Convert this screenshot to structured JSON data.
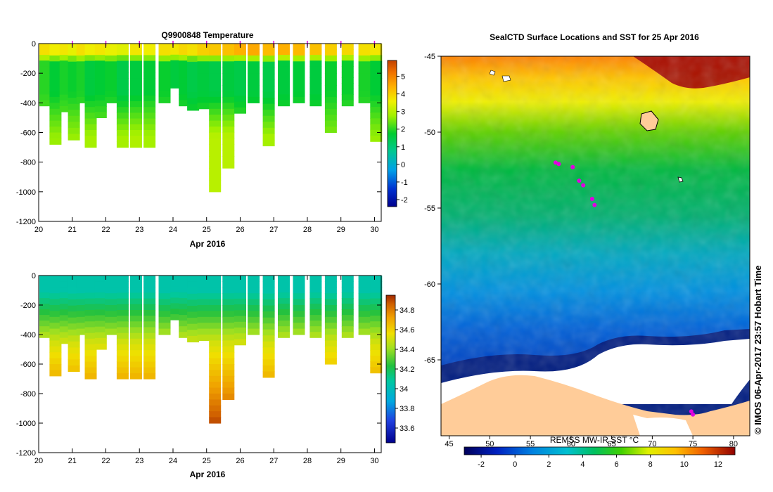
{
  "chart_data": [
    {
      "type": "heatmap",
      "title": "Q9900848  Temperature",
      "xlabel": "Apr 2016",
      "ylabel": "",
      "x_ticks": [
        "20",
        "21",
        "22",
        "23",
        "24",
        "25",
        "26",
        "27",
        "28",
        "29",
        "30"
      ],
      "xlim": [
        20,
        30.2
      ],
      "y_ticks": [
        "0",
        "-200",
        "-400",
        "-600",
        "-800",
        "-1000",
        "-1200"
      ],
      "ylim": [
        -1200,
        0
      ],
      "colorbar": {
        "min": -2.4,
        "max": 5.9,
        "ticks": [
          "-2",
          "-1",
          "0",
          "1",
          "2",
          "3",
          "4",
          "5"
        ]
      },
      "markers_x": [
        21,
        22,
        23,
        24,
        25,
        26,
        27,
        28,
        29,
        30
      ],
      "profiles": [
        {
          "x": 20.2,
          "depth": 420,
          "surface": 3.8,
          "mid": 2.0,
          "deep": 2.6
        },
        {
          "x": 20.5,
          "depth": 680,
          "surface": 3.6,
          "mid": 1.7,
          "deep": 2.7
        },
        {
          "x": 20.8,
          "depth": 460,
          "surface": 3.7,
          "mid": 1.9,
          "deep": 2.6
        },
        {
          "x": 21.05,
          "depth": 650,
          "surface": 3.5,
          "mid": 1.8,
          "deep": 2.7
        },
        {
          "x": 21.3,
          "depth": 400,
          "surface": 3.8,
          "mid": 1.9,
          "deep": 2.5
        },
        {
          "x": 21.55,
          "depth": 700,
          "surface": 3.6,
          "mid": 1.6,
          "deep": 2.8
        },
        {
          "x": 21.85,
          "depth": 500,
          "surface": 3.7,
          "mid": 1.7,
          "deep": 2.6
        },
        {
          "x": 22.15,
          "depth": 400,
          "surface": 3.5,
          "mid": 1.8,
          "deep": 2.5
        },
        {
          "x": 22.5,
          "depth": 700,
          "surface": 3.4,
          "mid": 1.5,
          "deep": 2.8
        },
        {
          "x": 22.9,
          "depth": 700,
          "surface": 3.7,
          "mid": 1.6,
          "deep": 2.9
        },
        {
          "x": 23.3,
          "depth": 700,
          "surface": 3.6,
          "mid": 1.7,
          "deep": 2.8
        },
        {
          "x": 23.75,
          "depth": 400,
          "surface": 3.8,
          "mid": 1.8,
          "deep": 2.5
        },
        {
          "x": 24.1,
          "depth": 300,
          "surface": 3.7,
          "mid": 1.6,
          "deep": 2.2
        },
        {
          "x": 24.35,
          "depth": 420,
          "surface": 3.9,
          "mid": 1.7,
          "deep": 2.4
        },
        {
          "x": 24.6,
          "depth": 450,
          "surface": 3.8,
          "mid": 1.5,
          "deep": 2.4
        },
        {
          "x": 24.9,
          "depth": 440,
          "surface": 4.0,
          "mid": 1.6,
          "deep": 2.5
        },
        {
          "x": 25.25,
          "depth": 1000,
          "surface": 4.1,
          "mid": 1.5,
          "deep": 3.0
        },
        {
          "x": 25.65,
          "depth": 840,
          "surface": 4.2,
          "mid": 1.6,
          "deep": 3.0
        },
        {
          "x": 26.0,
          "depth": 470,
          "surface": 4.4,
          "mid": 1.5,
          "deep": 2.6
        },
        {
          "x": 26.4,
          "depth": 400,
          "surface": 4.5,
          "mid": 1.6,
          "deep": 2.5
        },
        {
          "x": 26.85,
          "depth": 690,
          "surface": 4.3,
          "mid": 1.5,
          "deep": 2.8
        },
        {
          "x": 27.3,
          "depth": 420,
          "surface": 4.4,
          "mid": 1.6,
          "deep": 2.5
        },
        {
          "x": 27.75,
          "depth": 400,
          "surface": 4.3,
          "mid": 1.7,
          "deep": 2.5
        },
        {
          "x": 28.25,
          "depth": 420,
          "surface": 4.2,
          "mid": 1.6,
          "deep": 2.5
        },
        {
          "x": 28.7,
          "depth": 600,
          "surface": 4.0,
          "mid": 1.8,
          "deep": 2.6
        },
        {
          "x": 29.2,
          "depth": 420,
          "surface": 3.9,
          "mid": 1.8,
          "deep": 2.5
        },
        {
          "x": 29.7,
          "depth": 400,
          "surface": 3.8,
          "mid": 1.9,
          "deep": 2.4
        },
        {
          "x": 30.05,
          "depth": 660,
          "surface": 3.7,
          "mid": 1.7,
          "deep": 2.7
        }
      ]
    },
    {
      "type": "heatmap",
      "title": "",
      "xlabel": "Apr 2016",
      "ylabel": "",
      "x_ticks": [
        "20",
        "21",
        "22",
        "23",
        "24",
        "25",
        "26",
        "27",
        "28",
        "29",
        "30"
      ],
      "xlim": [
        20,
        30.2
      ],
      "y_ticks": [
        "0",
        "-200",
        "-400",
        "-600",
        "-800",
        "-1000",
        "-1200"
      ],
      "ylim": [
        -1200,
        0
      ],
      "colorbar": {
        "min": 33.45,
        "max": 34.95,
        "ticks": [
          "33.6",
          "33.8",
          "34",
          "34.2",
          "34.4",
          "34.6",
          "34.8"
        ]
      },
      "profiles": [
        {
          "x": 20.2,
          "depth": 420
        },
        {
          "x": 20.5,
          "depth": 680
        },
        {
          "x": 20.8,
          "depth": 460
        },
        {
          "x": 21.05,
          "depth": 650
        },
        {
          "x": 21.3,
          "depth": 400
        },
        {
          "x": 21.55,
          "depth": 700
        },
        {
          "x": 21.85,
          "depth": 500
        },
        {
          "x": 22.15,
          "depth": 400
        },
        {
          "x": 22.5,
          "depth": 700
        },
        {
          "x": 22.9,
          "depth": 700
        },
        {
          "x": 23.3,
          "depth": 700
        },
        {
          "x": 23.75,
          "depth": 400
        },
        {
          "x": 24.1,
          "depth": 300
        },
        {
          "x": 24.35,
          "depth": 420
        },
        {
          "x": 24.6,
          "depth": 450
        },
        {
          "x": 24.9,
          "depth": 440
        },
        {
          "x": 25.25,
          "depth": 1000
        },
        {
          "x": 25.65,
          "depth": 840
        },
        {
          "x": 26.0,
          "depth": 470
        },
        {
          "x": 26.4,
          "depth": 400
        },
        {
          "x": 26.85,
          "depth": 690
        },
        {
          "x": 27.3,
          "depth": 420
        },
        {
          "x": 27.75,
          "depth": 400
        },
        {
          "x": 28.25,
          "depth": 420
        },
        {
          "x": 28.7,
          "depth": 600
        },
        {
          "x": 29.2,
          "depth": 420
        },
        {
          "x": 29.7,
          "depth": 400
        },
        {
          "x": 30.05,
          "depth": 660
        }
      ]
    },
    {
      "type": "heatmap",
      "title": "SealCTD Surface Locations and SST for 25 Apr 2016",
      "x_ticks": [
        "45",
        "50",
        "55",
        "60",
        "65",
        "70",
        "75",
        "80"
      ],
      "xlim": [
        44,
        82
      ],
      "y_ticks": [
        "-45",
        "-50",
        "-55",
        "-60",
        "-65"
      ],
      "ylim": [
        -70,
        -45
      ],
      "colorbar": {
        "label": "REMSS MW-IR SST °C",
        "min": -3,
        "max": 13,
        "ticks": [
          "-2",
          "0",
          "2",
          "4",
          "6",
          "8",
          "10",
          "12"
        ]
      },
      "seal_positions": [
        {
          "lon": 58.1,
          "lat": -52.0
        },
        {
          "lon": 58.5,
          "lat": -52.1
        },
        {
          "lon": 60.2,
          "lat": -52.3
        },
        {
          "lon": 61.0,
          "lat": -53.2
        },
        {
          "lon": 61.5,
          "lat": -53.5
        },
        {
          "lon": 62.6,
          "lat": -54.4
        },
        {
          "lon": 62.9,
          "lat": -54.8
        },
        {
          "lon": 74.8,
          "lat": -68.4
        },
        {
          "lon": 75.0,
          "lat": -68.6
        }
      ]
    }
  ],
  "credit": "© IMOS 06-Apr-2017 23:57 Hobart Time",
  "colors": {
    "marker": "#e000e0",
    "land": "#ffcc99",
    "ice": "#ffffff"
  }
}
